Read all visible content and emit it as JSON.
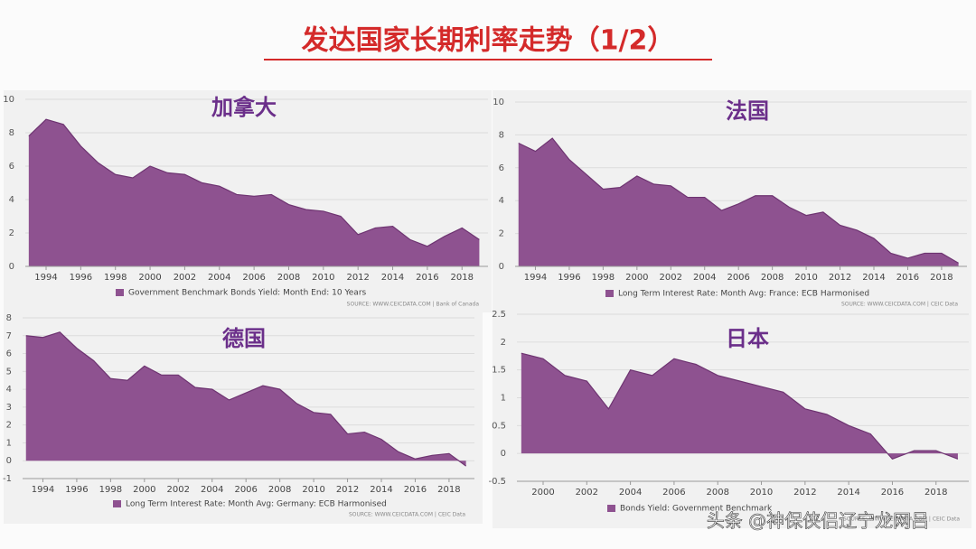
{
  "title": "发达国家长期利率走势（1/2）",
  "watermark": "头条 @神保侠侣辽宁龙网吕",
  "chart_data": [
    {
      "type": "area",
      "title": "加拿大",
      "series": [
        {
          "name": "Government Benchmark Bonds Yield: Month End: 10 Years",
          "color": "#8e5290",
          "values": [
            7.8,
            8.8,
            8.5,
            7.2,
            6.2,
            5.5,
            5.3,
            6.0,
            5.6,
            5.5,
            5.0,
            4.8,
            4.3,
            4.2,
            4.3,
            3.7,
            3.4,
            3.3,
            3.0,
            1.9,
            2.3,
            2.4,
            1.6,
            1.2,
            1.8,
            2.3,
            1.6
          ]
        }
      ],
      "x": [
        1993,
        1994,
        1995,
        1996,
        1997,
        1998,
        1999,
        2000,
        2001,
        2002,
        2003,
        2004,
        2005,
        2006,
        2007,
        2008,
        2009,
        2010,
        2011,
        2012,
        2013,
        2014,
        2015,
        2016,
        2017,
        2018,
        2019
      ],
      "xlim": [
        1992.8,
        2019.5
      ],
      "xticks": [
        1994,
        1996,
        1998,
        2000,
        2002,
        2004,
        2006,
        2008,
        2010,
        2012,
        2014,
        2016,
        2018
      ],
      "ylim": [
        0,
        10
      ],
      "yticks": [
        0,
        2,
        4,
        6,
        8,
        10
      ],
      "grid": true,
      "source": "SOURCE: WWW.CEICDATA.COM | Bank of Canada"
    },
    {
      "type": "area",
      "title": "法国",
      "series": [
        {
          "name": "Long Term Interest Rate: Month Avg: France: ECB Harmonised",
          "color": "#8e5290",
          "values": [
            7.5,
            7.0,
            7.8,
            6.5,
            5.6,
            4.7,
            4.8,
            5.5,
            5.0,
            4.9,
            4.2,
            4.2,
            3.4,
            3.8,
            4.3,
            4.3,
            3.6,
            3.1,
            3.3,
            2.5,
            2.2,
            1.7,
            0.8,
            0.5,
            0.8,
            0.8,
            0.2
          ]
        }
      ],
      "x": [
        1993,
        1994,
        1995,
        1996,
        1997,
        1998,
        1999,
        2000,
        2001,
        2002,
        2003,
        2004,
        2005,
        2006,
        2007,
        2008,
        2009,
        2010,
        2011,
        2012,
        2013,
        2014,
        2015,
        2016,
        2017,
        2018,
        2019
      ],
      "xlim": [
        1992.8,
        2019.5
      ],
      "xticks": [
        1994,
        1996,
        1998,
        2000,
        2002,
        2004,
        2006,
        2008,
        2010,
        2012,
        2014,
        2016,
        2018
      ],
      "ylim": [
        0,
        10
      ],
      "yticks": [
        0,
        2,
        4,
        6,
        8,
        10
      ],
      "grid": true,
      "source": "SOURCE: WWW.CEICDATA.COM | CEIC Data"
    },
    {
      "type": "area",
      "title": "德国",
      "series": [
        {
          "name": "Long Term Interest Rate: Month Avg: Germany: ECB Harmonised",
          "color": "#8e5290",
          "values": [
            7.0,
            6.9,
            7.2,
            6.3,
            5.6,
            4.6,
            4.5,
            5.3,
            4.8,
            4.8,
            4.1,
            4.0,
            3.4,
            3.8,
            4.2,
            4.0,
            3.2,
            2.7,
            2.6,
            1.5,
            1.6,
            1.2,
            0.5,
            0.1,
            0.3,
            0.4,
            -0.3
          ]
        }
      ],
      "x": [
        1993,
        1994,
        1995,
        1996,
        1997,
        1998,
        1999,
        2000,
        2001,
        2002,
        2003,
        2004,
        2005,
        2006,
        2007,
        2008,
        2009,
        2010,
        2011,
        2012,
        2013,
        2014,
        2015,
        2016,
        2017,
        2018,
        2019
      ],
      "xlim": [
        1992.8,
        2019.5
      ],
      "xticks": [
        1994,
        1996,
        1998,
        2000,
        2002,
        2004,
        2006,
        2008,
        2010,
        2012,
        2014,
        2016,
        2018
      ],
      "ylim": [
        -1,
        8
      ],
      "yticks": [
        -1,
        0,
        1,
        2,
        3,
        4,
        5,
        6,
        7,
        8
      ],
      "grid": true,
      "source": "SOURCE: WWW.CEICDATA.COM | CEIC Data"
    },
    {
      "type": "area",
      "title": "日本",
      "series": [
        {
          "name": "Bonds Yield: Government Benchmark",
          "color": "#8e5290",
          "values": [
            1.8,
            1.7,
            1.4,
            1.3,
            0.8,
            1.5,
            1.4,
            1.7,
            1.6,
            1.4,
            1.3,
            1.2,
            1.1,
            0.8,
            0.7,
            0.5,
            0.35,
            -0.1,
            0.05,
            0.05,
            -0.1
          ]
        }
      ],
      "x": [
        1999,
        2000,
        2001,
        2002,
        2003,
        2004,
        2005,
        2006,
        2007,
        2008,
        2009,
        2010,
        2011,
        2012,
        2013,
        2014,
        2015,
        2016,
        2017,
        2018,
        2019
      ],
      "xlim": [
        1998.8,
        2019.5
      ],
      "xticks": [
        2000,
        2002,
        2004,
        2006,
        2008,
        2010,
        2012,
        2014,
        2016,
        2018
      ],
      "ylim": [
        -0.5,
        2.5
      ],
      "yticks": [
        -0.5,
        0,
        0.5,
        1,
        1.5,
        2,
        2.5
      ],
      "grid": true,
      "source": "SOURCE: WWW.CEICDATA.COM | CEIC Data"
    }
  ]
}
